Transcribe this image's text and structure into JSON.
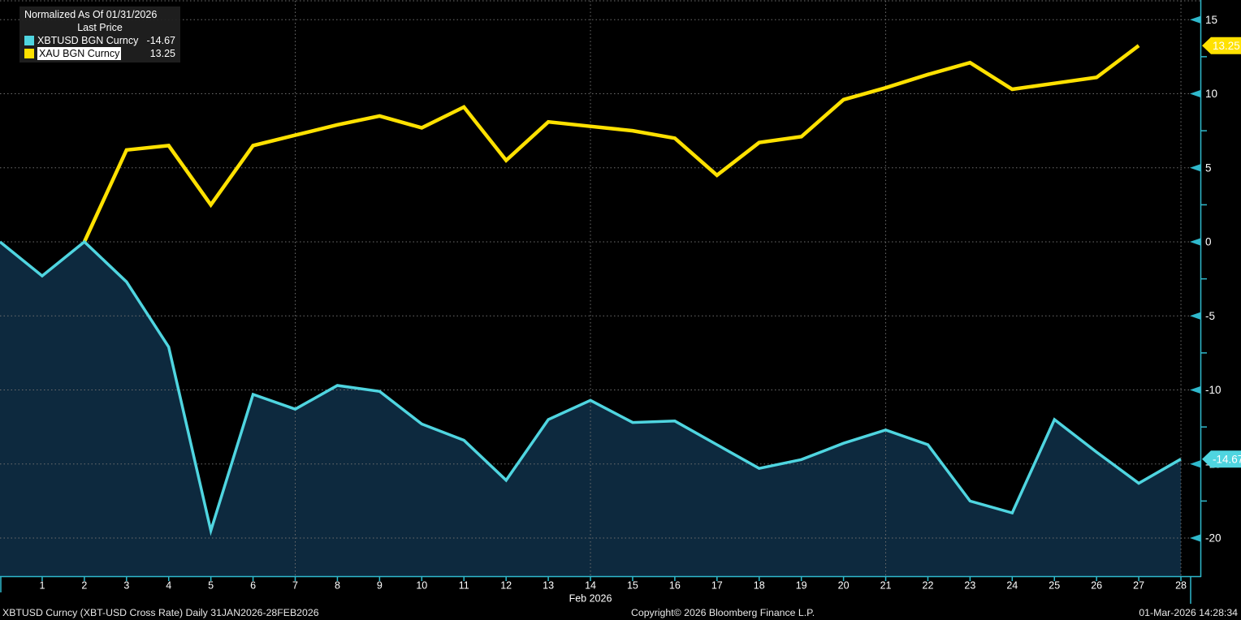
{
  "legend": {
    "title": "Normalized As Of 01/31/2026",
    "subtitle": "Last Price",
    "items": [
      {
        "label": "XBTUSD BGN Curncy",
        "value": "-14.67",
        "highlighted": false
      },
      {
        "label": "XAU BGN Curncy",
        "value": "13.25",
        "highlighted": true
      }
    ]
  },
  "footer": {
    "left": "XBTUSD Curncy (XBT-USD Cross Rate) Daily 31JAN2026-28FEB2026",
    "center": "Copyright© 2026 Bloomberg Finance L.P.",
    "right": "01-Mar-2026 14:28:34"
  },
  "colors": {
    "background": "#000000",
    "area_fill": "#0D293E",
    "axis": "#2FB9CC",
    "grid": "#6E6E6E",
    "text": "#FFFFFF",
    "badge_text": "#000000",
    "highlight_bg": "#FFFFFF"
  },
  "chart_data": {
    "type": "line",
    "title": "Normalized As Of 01/31/2026",
    "subtitle": "Last Price",
    "x_axis": {
      "month_label": "Feb 2026",
      "ticks": [
        "1",
        "2",
        "3",
        "4",
        "5",
        "6",
        "7",
        "8",
        "9",
        "10",
        "11",
        "12",
        "13",
        "14",
        "15",
        "16",
        "17",
        "18",
        "19",
        "20",
        "21",
        "22",
        "23",
        "24",
        "25",
        "26",
        "27",
        "28"
      ],
      "grid_days": [
        7,
        14,
        21,
        28
      ],
      "note_day0": "31JAN2026 at left edge"
    },
    "y_axis": {
      "major_ticks": [
        15,
        10,
        5,
        0,
        -5,
        -10,
        -15,
        -20
      ],
      "tick_labels": [
        "15",
        "10",
        "5",
        "0",
        "-5",
        "-10",
        "-15",
        "-20"
      ],
      "minor_ticks": [
        12.5,
        7.5,
        2.5,
        -2.5,
        -7.5,
        -12.5,
        -17.5
      ],
      "ylim": [
        -22.6,
        16.3
      ],
      "grid": true
    },
    "series": [
      {
        "name": "XBTUSD BGN Curncy",
        "color": "#4FD5E0",
        "fill_area": true,
        "last_price": -14.67,
        "points": [
          [
            0,
            0
          ],
          [
            1,
            -2.3
          ],
          [
            2,
            0
          ],
          [
            3,
            -2.7
          ],
          [
            4,
            -7.1
          ],
          [
            5,
            -19.5
          ],
          [
            6,
            -10.3
          ],
          [
            7,
            -11.3
          ],
          [
            8,
            -9.7
          ],
          [
            9,
            -10.1
          ],
          [
            10,
            -12.3
          ],
          [
            11,
            -13.4
          ],
          [
            12,
            -16.1
          ],
          [
            13,
            -12.0
          ],
          [
            14,
            -10.7
          ],
          [
            15,
            -12.2
          ],
          [
            16,
            -12.1
          ],
          [
            17,
            -13.7
          ],
          [
            18,
            -15.3
          ],
          [
            19,
            -14.7
          ],
          [
            20,
            -13.6
          ],
          [
            21,
            -12.7
          ],
          [
            22,
            -13.7
          ],
          [
            23,
            -17.5
          ],
          [
            24,
            -18.3
          ],
          [
            25,
            -12.0
          ],
          [
            26,
            -14.2
          ],
          [
            27,
            -16.3
          ],
          [
            28,
            -14.67
          ]
        ]
      },
      {
        "name": "XAU BGN Curncy",
        "color": "#FFE100",
        "fill_area": false,
        "last_price": 13.25,
        "points": [
          [
            2,
            0
          ],
          [
            3,
            6.2
          ],
          [
            4,
            6.5
          ],
          [
            5,
            2.5
          ],
          [
            6,
            6.5
          ],
          [
            7,
            7.2
          ],
          [
            8,
            7.9
          ],
          [
            9,
            8.5
          ],
          [
            10,
            7.7
          ],
          [
            11,
            9.1
          ],
          [
            12,
            5.5
          ],
          [
            13,
            8.1
          ],
          [
            14,
            7.8
          ],
          [
            15,
            7.5
          ],
          [
            16,
            7.0
          ],
          [
            17,
            4.5
          ],
          [
            18,
            6.7
          ],
          [
            19,
            7.1
          ],
          [
            20,
            9.6
          ],
          [
            21,
            10.4
          ],
          [
            22,
            11.3
          ],
          [
            23,
            12.1
          ],
          [
            24,
            10.3
          ],
          [
            25,
            10.7
          ],
          [
            26,
            11.1
          ],
          [
            27,
            13.25
          ]
        ]
      }
    ],
    "badges": [
      {
        "label": "13.25",
        "value": 13.25,
        "series": 1
      },
      {
        "label": "-14.67",
        "value": -14.67,
        "series": 0
      }
    ]
  }
}
